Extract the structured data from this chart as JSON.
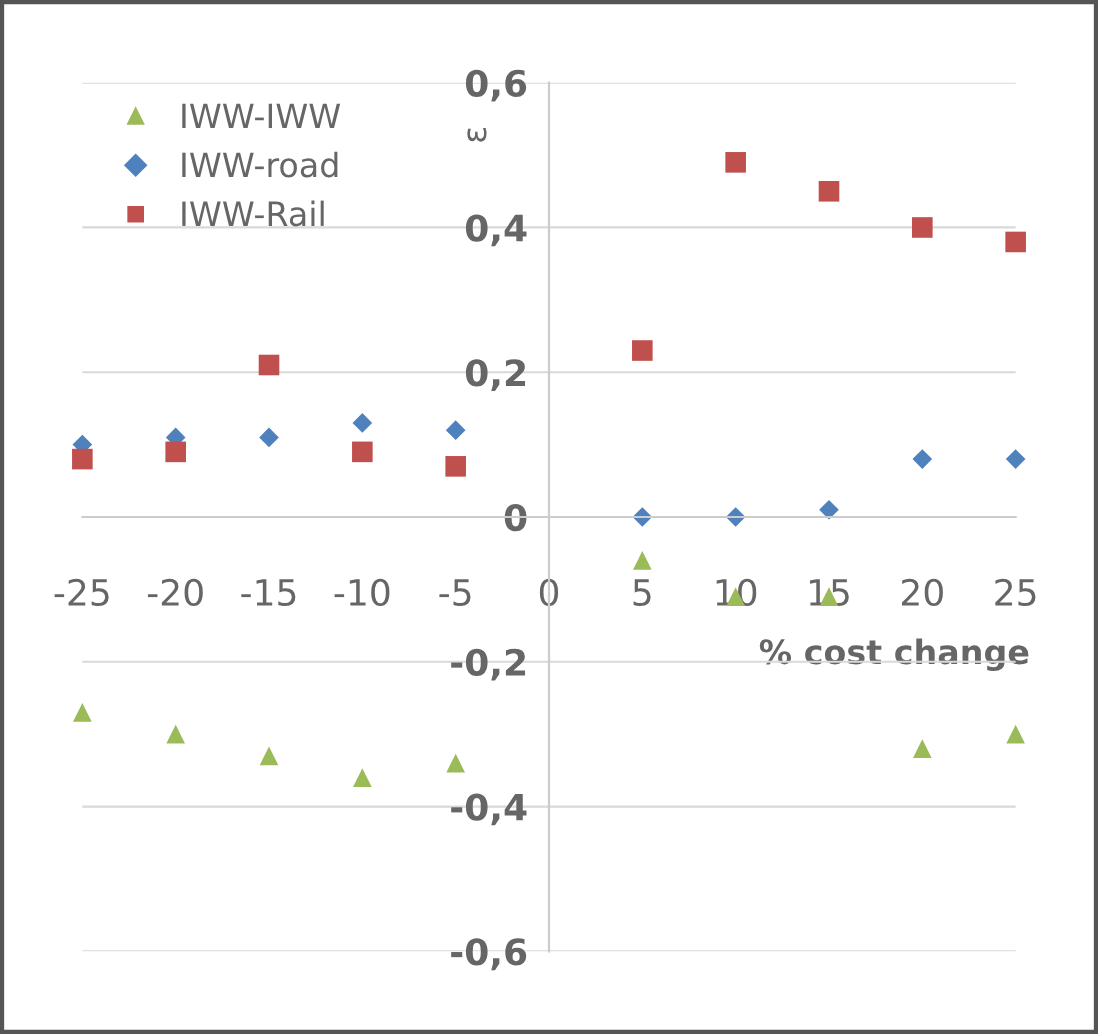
{
  "chart_data": {
    "type": "scatter",
    "xlabel": "% cost change",
    "ylabel": "ε",
    "x": [
      -25,
      -20,
      -15,
      -10,
      -5,
      5,
      10,
      15,
      20,
      25
    ],
    "series": [
      {
        "name": "IWW-IWW",
        "color": "#9bbb59",
        "marker": "triangle",
        "values": [
          -0.27,
          -0.3,
          -0.33,
          -0.36,
          -0.34,
          -0.06,
          -0.11,
          -0.11,
          -0.32,
          -0.3
        ]
      },
      {
        "name": "IWW-road",
        "color": "#4f81bd",
        "marker": "diamond",
        "values": [
          0.1,
          0.11,
          0.11,
          0.13,
          0.12,
          0.0,
          0.0,
          0.01,
          0.08,
          0.08
        ]
      },
      {
        "name": "IWW-Rail",
        "color": "#c0504d",
        "marker": "square",
        "values": [
          0.08,
          0.09,
          0.21,
          0.09,
          0.07,
          0.23,
          0.49,
          0.45,
          0.4,
          0.38
        ]
      }
    ],
    "xlim": [
      -25,
      25
    ],
    "ylim": [
      -0.6,
      0.6
    ],
    "xticks": [
      -25,
      -20,
      -15,
      -10,
      -5,
      0,
      5,
      10,
      15,
      20,
      25
    ],
    "yticks": [
      {
        "value": -0.6,
        "label": "-0,6"
      },
      {
        "value": -0.4,
        "label": "-0,4"
      },
      {
        "value": -0.2,
        "label": "-0,2"
      },
      0,
      {
        "value": 0.2,
        "label": "0,2"
      },
      {
        "value": 0.4,
        "label": "0,4"
      },
      {
        "value": 0.6,
        "label": "0,6"
      }
    ],
    "grid": "y",
    "legend": "top left"
  }
}
